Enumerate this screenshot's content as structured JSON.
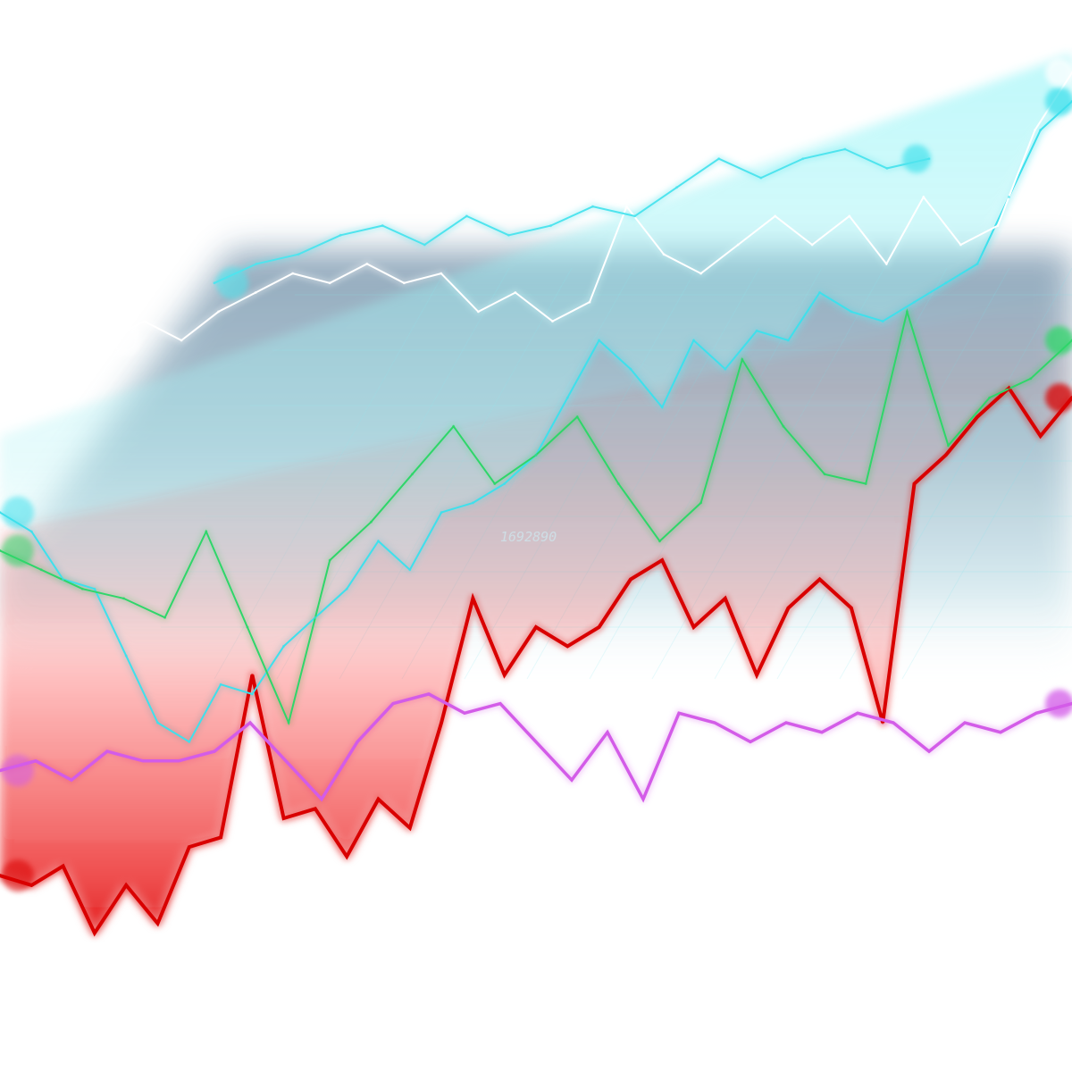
{
  "chart_data": {
    "type": "line",
    "title": "",
    "xlabel": "",
    "ylabel": "",
    "grid": true,
    "legend": "none",
    "background_label": "1692890",
    "x_count": 23,
    "ylim": [
      0,
      100
    ],
    "series": [
      {
        "name": "red",
        "color": "#d90000",
        "values": [
          14,
          13,
          15,
          8,
          13,
          9,
          17,
          18,
          35,
          20,
          21,
          16,
          22,
          19,
          30,
          43,
          35,
          40,
          38,
          40,
          45,
          47,
          40,
          43,
          35,
          42,
          45,
          42,
          30,
          55,
          58,
          62,
          65,
          60,
          64
        ]
      },
      {
        "name": "magenta",
        "color": "#d35ce8",
        "values": [
          25,
          26,
          24,
          27,
          26,
          26,
          27,
          30,
          26,
          22,
          28,
          32,
          33,
          31,
          32,
          28,
          24,
          29,
          22,
          31,
          30,
          28,
          30,
          29,
          31,
          30,
          27,
          30,
          29,
          31,
          32
        ]
      },
      {
        "name": "cyan",
        "color": "#3fe0ec",
        "values": [
          52,
          50,
          45,
          44,
          37,
          30,
          28,
          34,
          33,
          38,
          41,
          44,
          49,
          46,
          52,
          53,
          55,
          58,
          64,
          70,
          67,
          63,
          70,
          67,
          71,
          70,
          75,
          73,
          72,
          74,
          76,
          78,
          85,
          92,
          95
        ]
      },
      {
        "name": "green",
        "color": "#2fd66a",
        "values": [
          48,
          46,
          44,
          43,
          41,
          50,
          40,
          30,
          47,
          51,
          56,
          61,
          55,
          58,
          62,
          55,
          49,
          53,
          68,
          61,
          56,
          55,
          73,
          59,
          64,
          66,
          70
        ]
      },
      {
        "name": "white",
        "color": "#ffffff",
        "values": [
          70,
          72,
          70,
          73,
          75,
          77,
          76,
          78,
          76,
          77,
          73,
          75,
          72,
          74,
          84,
          79,
          77,
          80,
          83,
          80,
          83,
          78,
          85,
          80,
          82,
          92,
          98
        ]
      },
      {
        "name": "upper-cyan",
        "color": "#4fe4ee",
        "values": [
          76,
          78,
          79,
          81,
          82,
          80,
          83,
          81,
          82,
          84,
          83,
          86,
          89,
          87,
          89,
          90,
          88,
          89
        ]
      }
    ]
  }
}
